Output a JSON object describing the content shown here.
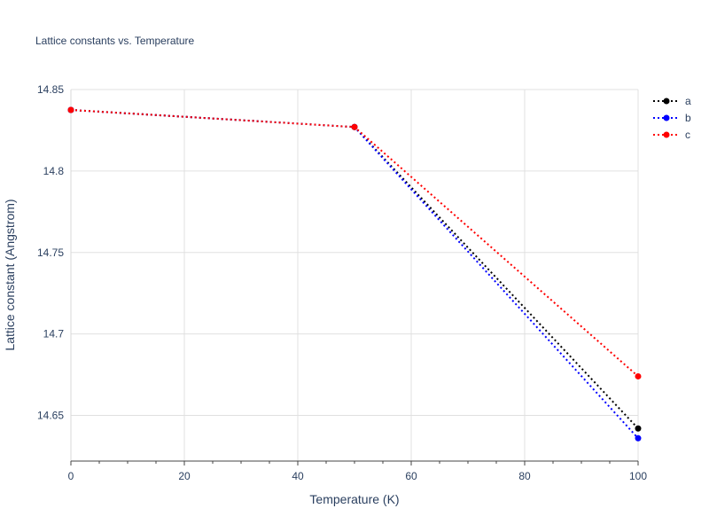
{
  "chart_data": {
    "type": "line",
    "title": "Lattice constants vs. Temperature",
    "xlabel": "Temperature (K)",
    "ylabel": "Lattice constant (Angstrom)",
    "xlim": [
      0,
      100
    ],
    "ylim": [
      14.622,
      14.85
    ],
    "x_ticks": [
      0,
      20,
      40,
      60,
      80,
      100
    ],
    "x_tick_labels": [
      "0",
      "20",
      "40",
      "60",
      "80",
      "100"
    ],
    "y_ticks": [
      14.65,
      14.7,
      14.75,
      14.8,
      14.85
    ],
    "y_tick_labels": [
      "14.65",
      "14.7",
      "14.75",
      "14.8",
      "14.85"
    ],
    "grid": true,
    "legend_position": "top-right",
    "line_style": "dotted",
    "x": [
      0,
      50,
      100
    ],
    "series": [
      {
        "name": "a",
        "color": "#000000",
        "values": [
          14.8375,
          14.827,
          14.642
        ]
      },
      {
        "name": "b",
        "color": "#0000ff",
        "values": [
          14.8375,
          14.827,
          14.636
        ]
      },
      {
        "name": "c",
        "color": "#ff0000",
        "values": [
          14.8375,
          14.827,
          14.674
        ]
      }
    ]
  }
}
